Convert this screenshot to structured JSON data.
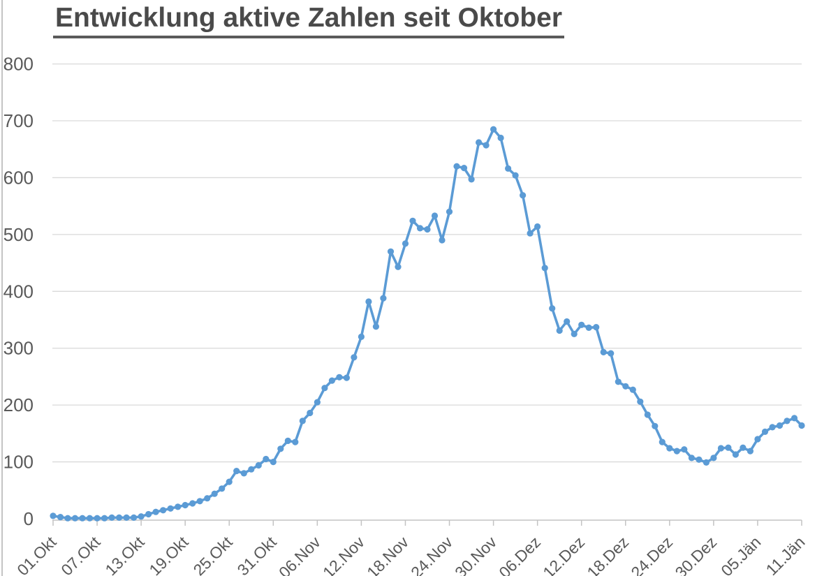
{
  "page": {
    "background": "#ffffff",
    "left_border_color": "#c4c4c4"
  },
  "chart_data": {
    "type": "line",
    "title": "Entwicklung aktive Zahlen seit Oktober",
    "title_color": "#4a4a4a",
    "xlabel": "",
    "ylabel": "",
    "ylim": [
      0,
      800
    ],
    "y_ticks": [
      0,
      100,
      200,
      300,
      400,
      500,
      600,
      700,
      800
    ],
    "x_tick_labels": [
      "01.Okt",
      "07.Okt",
      "13.Okt",
      "19.Okt",
      "25.Okt",
      "31.Okt",
      "06.Nov",
      "12.Nov",
      "18.Nov",
      "24.Nov",
      "30.Nov",
      "06.Dez",
      "12.Dez",
      "18.Dez",
      "24.Dez",
      "30.Dez",
      "05.Jän",
      "11.Jän"
    ],
    "x_ticks_every_n_points": 6,
    "grid": "horizontal-only",
    "legend": "none",
    "marker": "circle",
    "line_color": "#5b9bd5",
    "gridline_color": "#d9d9d9",
    "axis_line_color": "#c3c3c3",
    "axis_label_color": "#595959",
    "values": [
      5,
      3,
      1,
      1,
      1,
      1,
      1,
      1,
      2,
      2,
      2,
      2,
      4,
      8,
      12,
      15,
      18,
      21,
      24,
      27,
      31,
      36,
      44,
      53,
      65,
      84,
      80,
      87,
      94,
      105,
      100,
      123,
      137,
      135,
      172,
      186,
      205,
      230,
      243,
      249,
      248,
      284,
      320,
      382,
      338,
      388,
      470,
      443,
      484,
      524,
      511,
      509,
      533,
      490,
      540,
      620,
      617,
      597,
      662,
      657,
      685,
      670,
      616,
      604,
      569,
      502,
      514,
      441,
      370,
      331,
      347,
      325,
      341,
      336,
      337,
      293,
      291,
      241,
      233,
      227,
      206,
      183,
      163,
      135,
      124,
      119,
      122,
      107,
      104,
      99,
      107,
      124,
      125,
      113,
      125,
      119,
      140,
      153,
      161,
      164,
      172,
      177,
      164
    ]
  }
}
